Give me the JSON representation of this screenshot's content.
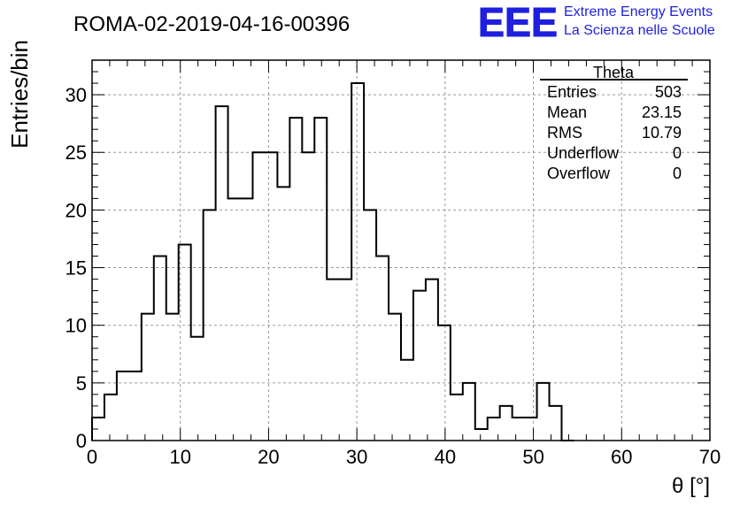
{
  "title": "ROMA-02-2019-04-16-00396",
  "logo": {
    "mark": "EEE",
    "line1": "Extreme Energy Events",
    "line2": "La Scienza nelle Scuole",
    "color": "#1f1fe0"
  },
  "stats": {
    "name": "Theta",
    "rows": [
      {
        "label": "Entries",
        "value": "503"
      },
      {
        "label": "Mean",
        "value": "23.15"
      },
      {
        "label": "RMS",
        "value": "10.79"
      },
      {
        "label": "Underflow",
        "value": "0"
      },
      {
        "label": "Overflow",
        "value": "0"
      }
    ]
  },
  "chart_data": {
    "type": "histogram",
    "title": "ROMA-02-2019-04-16-00396",
    "xlabel": "θ [°]",
    "ylabel": "Entries/bin",
    "xlim": [
      0,
      70
    ],
    "ylim": [
      0,
      33
    ],
    "xticks": [
      0,
      10,
      20,
      30,
      40,
      50,
      60,
      70
    ],
    "yticks": [
      0,
      5,
      10,
      15,
      20,
      25,
      30
    ],
    "grid": true,
    "bin_width": 1.4,
    "bin_edges_start": 0,
    "values": [
      2,
      4,
      6,
      6,
      11,
      16,
      11,
      17,
      9,
      20,
      29,
      21,
      21,
      25,
      25,
      22,
      28,
      25,
      28,
      14,
      14,
      31,
      20,
      16,
      11,
      7,
      13,
      14,
      10,
      4,
      5,
      1,
      2,
      3,
      2,
      2,
      5,
      3,
      0
    ]
  }
}
